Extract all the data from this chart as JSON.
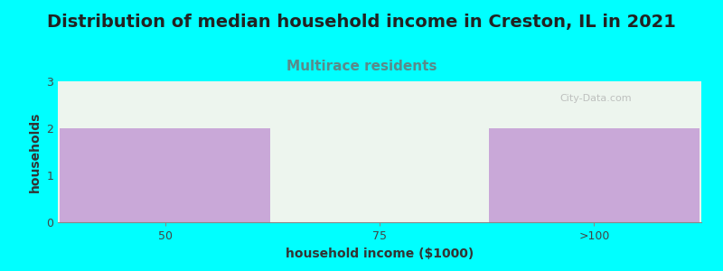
{
  "title": "Distribution of median household income in Creston, IL in 2021",
  "subtitle": "Multirace residents",
  "categories": [
    "50",
    "75",
    ">100"
  ],
  "values": [
    2,
    0,
    2
  ],
  "bar_color": "#C9A8D8",
  "background_color": "#00FFFF",
  "plot_bg_color": "#EDF5EE",
  "xlabel": "household income ($1000)",
  "ylabel": "households",
  "ylim": [
    0,
    3
  ],
  "yticks": [
    0,
    1,
    2,
    3
  ],
  "title_fontsize": 14,
  "subtitle_fontsize": 11,
  "subtitle_color": "#5A8A8A",
  "axis_label_fontsize": 10,
  "tick_fontsize": 9,
  "watermark": "City-Data.com",
  "watermark_color": "#AAAAAA",
  "title_color": "#222222"
}
